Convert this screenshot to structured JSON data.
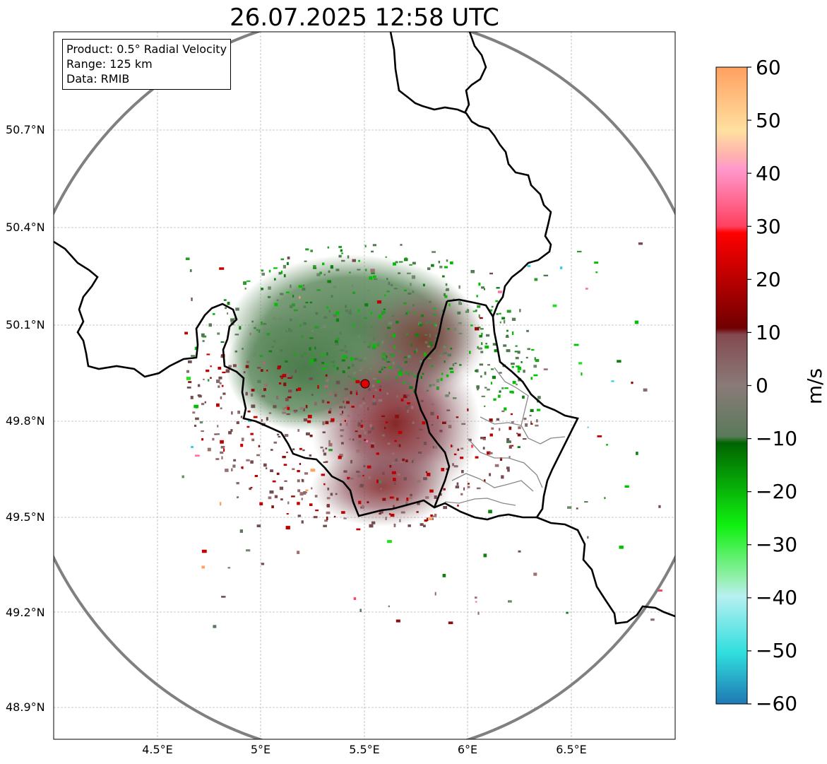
{
  "title": "26.07.2025 12:58 UTC",
  "info_box": {
    "product": "Product: 0.5° Radial Velocity",
    "range": "Range: 125 km",
    "data": "Data: RMIB"
  },
  "axes": {
    "lat_labels": [
      "50.7°N",
      "50.4°N",
      "50.1°N",
      "49.8°N",
      "49.5°N",
      "49.2°N",
      "48.9°N"
    ],
    "lon_labels": [
      "4.5°E",
      "5°E",
      "5.5°E",
      "6°E",
      "6.5°E"
    ],
    "lat_values": [
      50.7,
      50.4,
      50.1,
      49.8,
      49.5,
      49.2,
      48.9
    ],
    "lon_values": [
      4.5,
      5.0,
      5.5,
      6.0,
      6.5
    ],
    "lat_range": [
      48.8,
      51.0
    ],
    "lon_range": [
      4.0,
      7.0
    ],
    "grid": true
  },
  "radar": {
    "site_lon": 5.5,
    "site_lat": 49.92,
    "range_km": 125,
    "marker_color": "#e00000"
  },
  "colorbar": {
    "label": "m/s",
    "min": -60,
    "max": 60,
    "ticks": [
      "60",
      "50",
      "40",
      "30",
      "20",
      "10",
      "0",
      "−10",
      "−20",
      "−30",
      "−40",
      "−50",
      "−60"
    ],
    "tick_values": [
      60,
      50,
      40,
      30,
      20,
      10,
      0,
      -10,
      -20,
      -30,
      -40,
      -50,
      -60
    ],
    "colors": [
      "#1f78b4",
      "#2ab0d0",
      "#30dede",
      "#5ae3e3",
      "#8ee8e8",
      "#b8f0f0",
      "#90f0a8",
      "#5af56a",
      "#20f020",
      "#00d800",
      "#00b000",
      "#008a00",
      "#006400",
      "#5a7a5a",
      "#7a8a78",
      "#8a7070",
      "#844a50",
      "#700000",
      "#990000",
      "#c00000",
      "#e80000",
      "#ff4060",
      "#ff70a0",
      "#ff99cc",
      "#ffb0b0",
      "#ffe0a0",
      "#ffc080",
      "#ffa060"
    ]
  },
  "colors": {
    "border": "#000000",
    "range_ring": "#808080",
    "grid": "#b0b0b0"
  }
}
